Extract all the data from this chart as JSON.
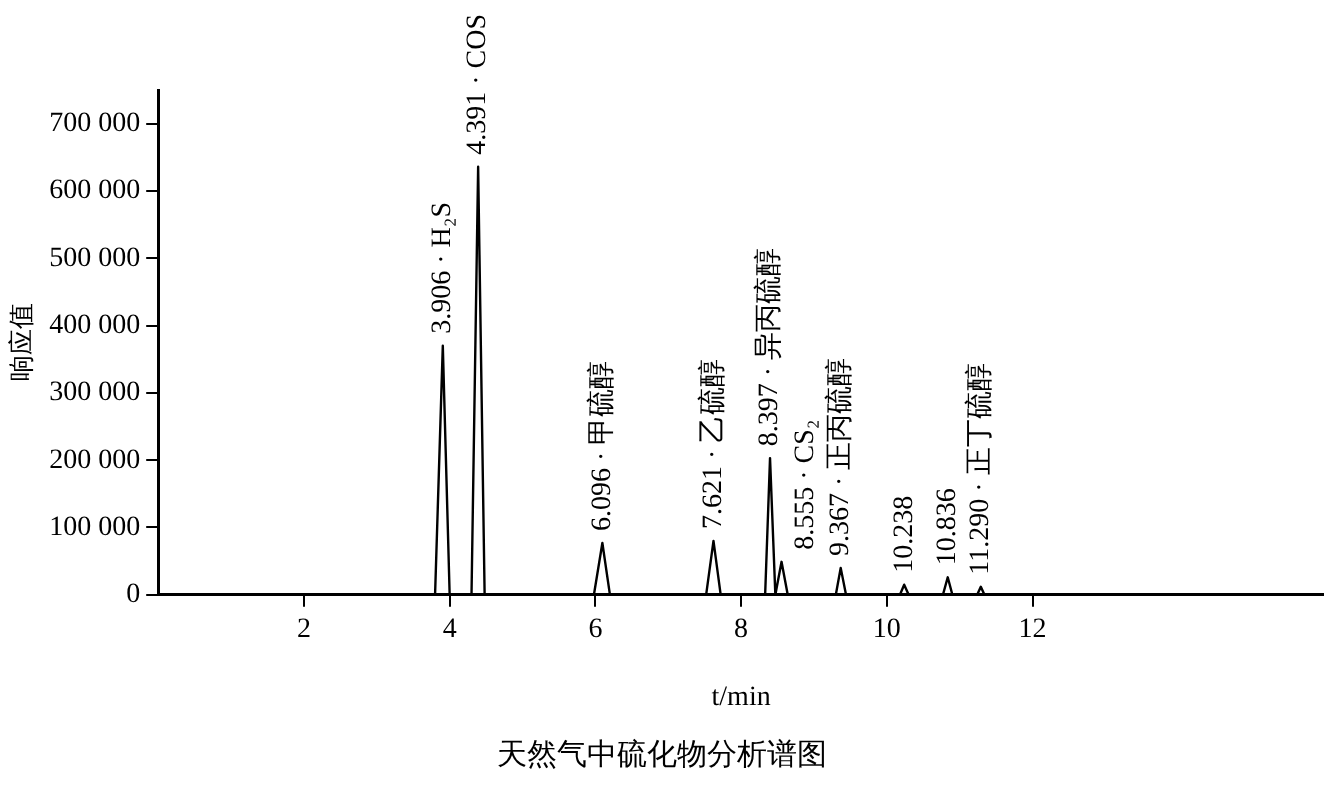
{
  "chart_data": {
    "type": "line",
    "title": "天然气中硫化物分析谱图",
    "xlabel": "t/min",
    "ylabel": "响应值",
    "x": [
      0,
      3.8,
      3.906,
      4.0,
      4.3,
      4.391,
      4.48,
      5.98,
      6.096,
      6.2,
      7.52,
      7.621,
      7.72,
      8.33,
      8.397,
      8.47,
      8.555,
      8.64,
      9.3,
      9.367,
      9.44,
      10.18,
      10.238,
      10.3,
      10.77,
      10.836,
      10.9,
      11.24,
      11.29,
      11.34,
      16
    ],
    "series": [
      {
        "color": "#000000",
        "values": [
          0,
          0,
          370000,
          0,
          0,
          636000,
          0,
          0,
          77000,
          0,
          0,
          80000,
          0,
          0,
          203000,
          0,
          49000,
          0,
          0,
          40000,
          0,
          0,
          15000,
          0,
          0,
          26000,
          0,
          0,
          12000,
          0,
          0
        ]
      }
    ],
    "xlim": [
      0,
      16
    ],
    "xticks": [
      2,
      4,
      6,
      8,
      10,
      12
    ],
    "ylim": [
      0,
      750000
    ],
    "yticks": [
      0,
      {
        "value": 100000,
        "label": "100 000"
      },
      {
        "value": 200000,
        "label": "200 000"
      },
      {
        "value": 300000,
        "label": "300 000"
      },
      {
        "value": 400000,
        "label": "400 000"
      },
      {
        "value": 500000,
        "label": "500 000"
      },
      {
        "value": 600000,
        "label": "600 000"
      },
      {
        "value": 700000,
        "label": "700 000"
      }
    ],
    "grid": false,
    "legend": false,
    "marker": "none",
    "line_style": "solid",
    "annotations": [
      {
        "text": "3.906 · H₂S",
        "x": 3.906,
        "y": 370000
      },
      {
        "text": "4.391 · COS",
        "x": 4.391,
        "y": 636000
      },
      {
        "text": "6.096 · 甲硫醇",
        "x": 6.096,
        "y": 77000
      },
      {
        "text": "7.621 · 乙硫醇",
        "x": 7.621,
        "y": 80000
      },
      {
        "text": "8.397 · 异丙硫醇",
        "x": 8.397,
        "y": 203000
      },
      {
        "text": "8.555 · CS₂",
        "x": 8.555,
        "y": 49000
      },
      {
        "text": "9.367 · 正丙硫醇",
        "x": 9.367,
        "y": 40000
      },
      {
        "text": "10.238",
        "x": 10.238,
        "y": 15000
      },
      {
        "text": "10.836",
        "x": 10.836,
        "y": 26000
      },
      {
        "text": "11.290 · 正丁硫醇",
        "x": 11.29,
        "y": 12000
      }
    ]
  }
}
